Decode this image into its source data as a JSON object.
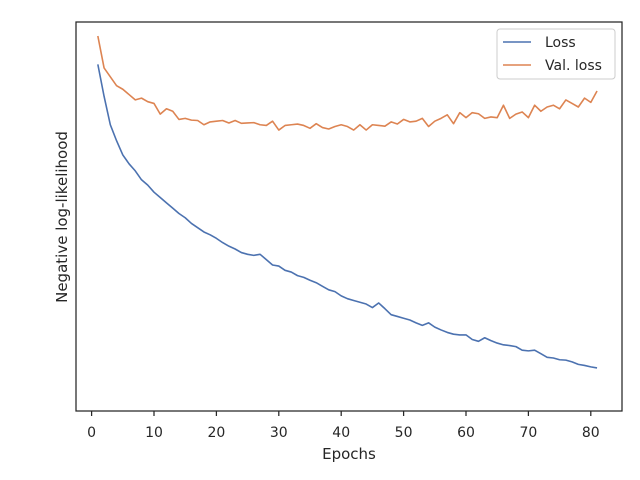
{
  "chart_data": {
    "type": "line",
    "xlabel": "Epochs",
    "ylabel": "Negative log-likelihood",
    "xlim": [
      -2.5,
      85
    ],
    "ylim": [
      0,
      100
    ],
    "x_ticks": [
      0,
      10,
      20,
      30,
      40,
      50,
      60,
      70,
      80
    ],
    "y_tick_labels_shown": false,
    "grid": false,
    "legend_position": "top-right",
    "x": [
      1,
      2,
      3,
      4,
      5,
      6,
      7,
      8,
      9,
      10,
      11,
      12,
      13,
      14,
      15,
      16,
      17,
      18,
      19,
      20,
      21,
      22,
      23,
      24,
      25,
      26,
      27,
      28,
      29,
      30,
      31,
      32,
      33,
      34,
      35,
      36,
      37,
      38,
      39,
      40,
      41,
      42,
      43,
      44,
      45,
      46,
      47,
      48,
      49,
      50,
      51,
      52,
      53,
      54,
      55,
      56,
      57,
      58,
      59,
      60,
      61,
      62,
      63,
      64,
      65,
      66,
      67,
      68,
      69,
      70,
      71,
      72,
      73,
      74,
      75,
      76,
      77,
      78,
      79,
      80,
      81
    ],
    "series": [
      {
        "name": "Loss",
        "color": "#4c72b0",
        "values": [
          92,
          83,
          75,
          70.5,
          66.5,
          64,
          62,
          59.5,
          58,
          56,
          54.5,
          53,
          51.5,
          50,
          48.8,
          47.2,
          46,
          44.8,
          44,
          43,
          41.8,
          40.8,
          40,
          39,
          38.5,
          38.2,
          38.5,
          37,
          35.5,
          35.2,
          34,
          33.5,
          32.5,
          32,
          31.2,
          30.5,
          29.5,
          28.5,
          28,
          26.8,
          26,
          25.5,
          25,
          24.5,
          23.5,
          24.8,
          23.2,
          21.5,
          21,
          20.5,
          20,
          19.2,
          18.5,
          19.2,
          18,
          17.2,
          16.5,
          16,
          15.8,
          15.8,
          14.5,
          14,
          15,
          14.2,
          13.5,
          13,
          12.8,
          12.5,
          11.5,
          11.3,
          11.5,
          10.5,
          9.5,
          9.3,
          8.8,
          8.7,
          8.2,
          7.5,
          7.2,
          6.8,
          6.5
        ]
      },
      {
        "name": "Val. loss",
        "color": "#dd8452",
        "values": [
          100,
          91,
          88.5,
          86,
          85,
          83.5,
          82,
          82.5,
          81.5,
          81,
          78,
          79.5,
          78.8,
          76.5,
          76.8,
          76.3,
          76.2,
          75,
          75.8,
          76,
          76.2,
          75.5,
          76.2,
          75.4,
          75.5,
          75.6,
          75,
          74.8,
          76,
          73.5,
          74.8,
          75,
          75.2,
          74.8,
          74,
          75.3,
          74.2,
          73.8,
          74.5,
          75,
          74.5,
          73.5,
          75,
          73.5,
          75,
          74.8,
          74.6,
          75.8,
          75.2,
          76.5,
          75.8,
          76,
          76.8,
          74.5,
          76,
          76.8,
          77.8,
          75.3,
          78.4,
          77,
          78.4,
          78.1,
          76.8,
          77.2,
          77,
          80.5,
          76.8,
          78,
          78.6,
          77,
          80.5,
          78.8,
          80,
          80.5,
          79.5,
          82,
          81,
          80,
          82.5,
          81.3,
          84.5
        ]
      }
    ]
  }
}
